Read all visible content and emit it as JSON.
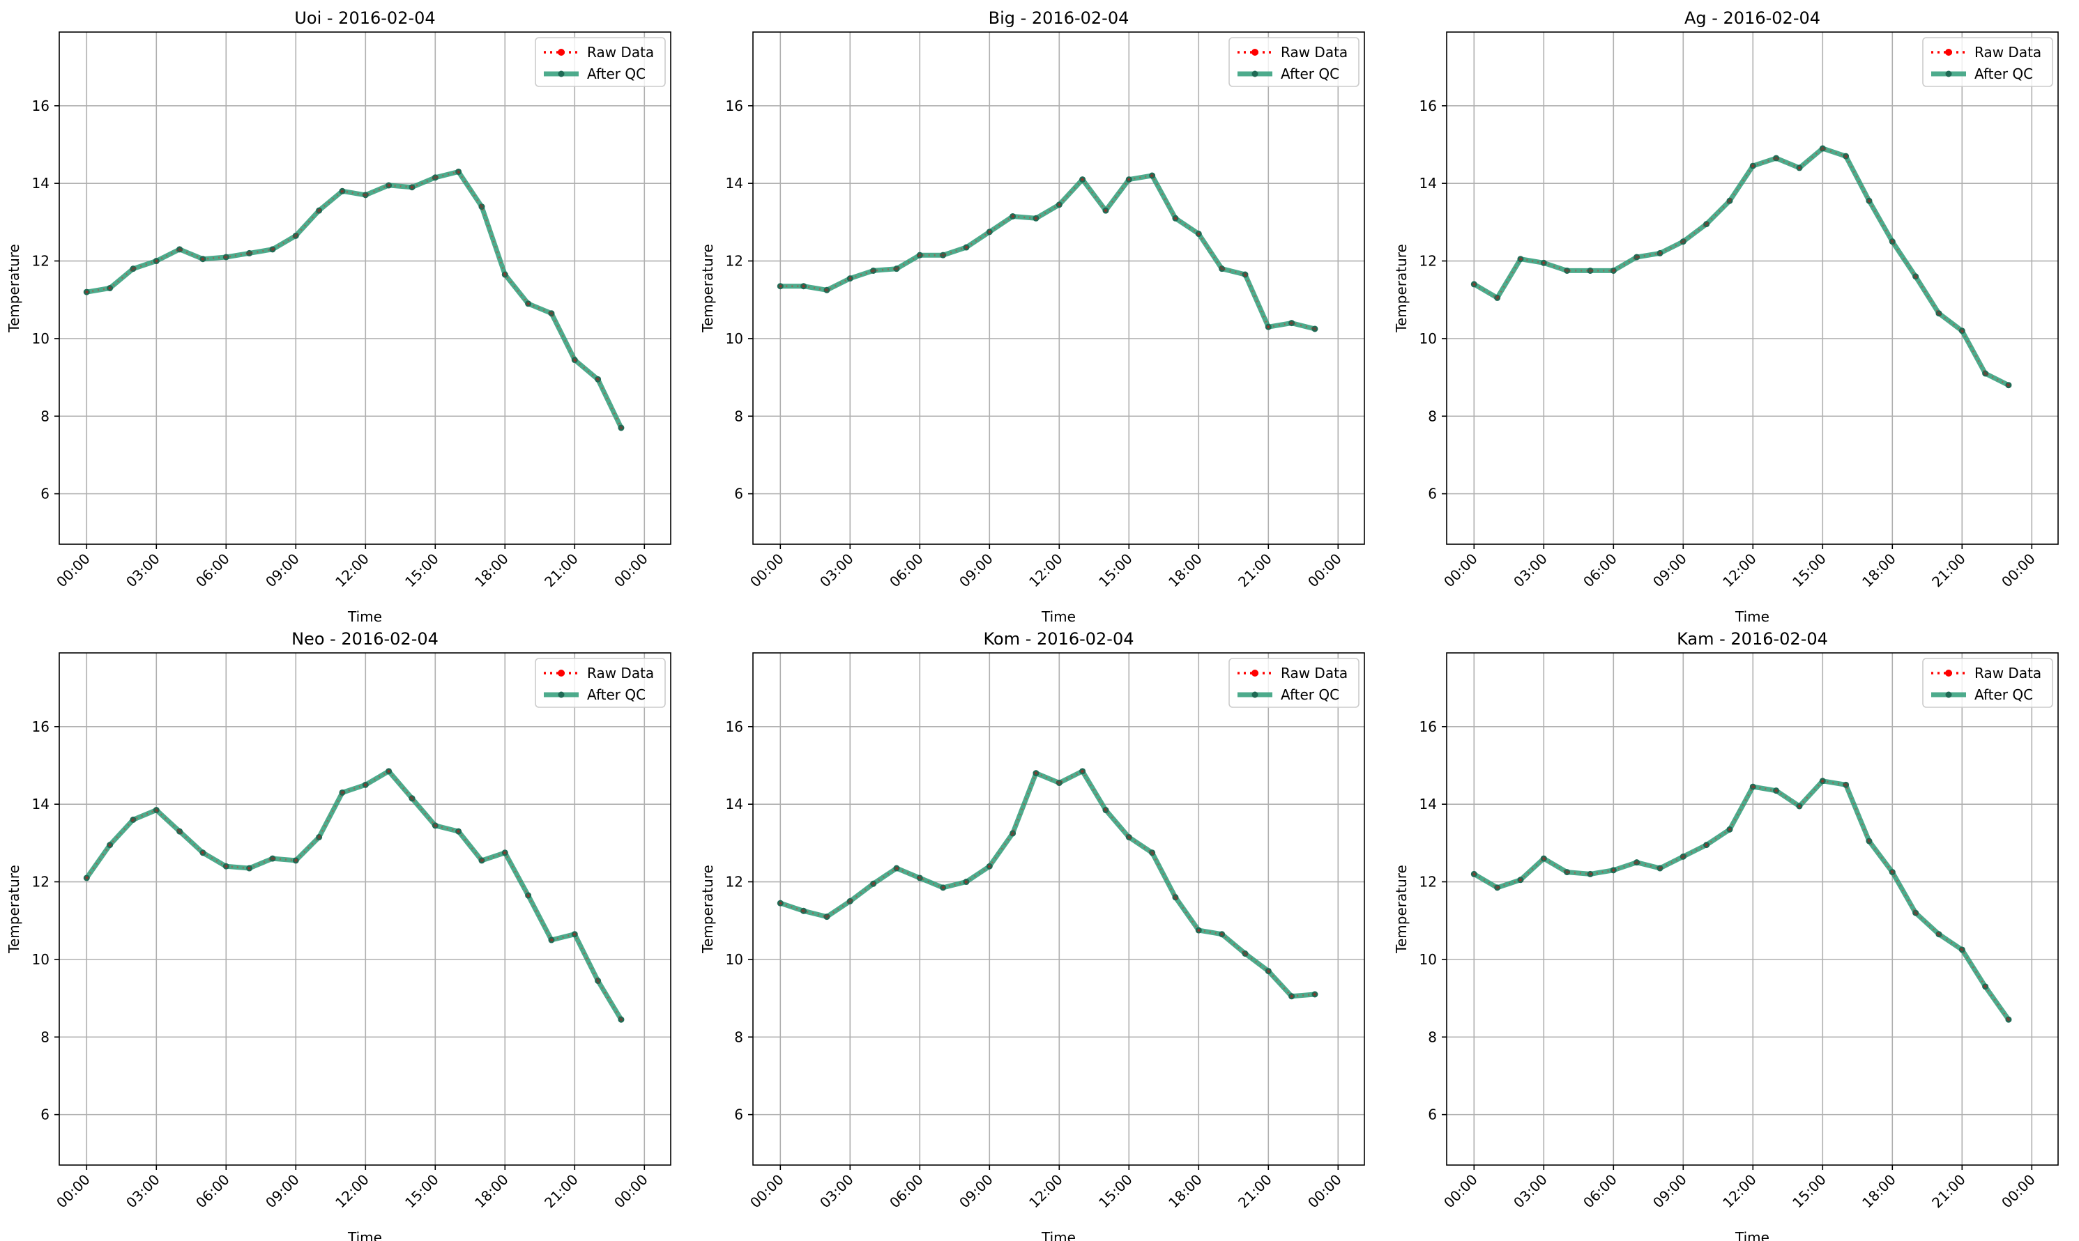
{
  "colors": {
    "raw": "#ff0000",
    "qc": "#2e9c78",
    "qc_marker": "#1f6b55",
    "grid": "#b0b0b0"
  },
  "chart_data": [
    {
      "type": "line",
      "title": "Uoi - 2016-02-04",
      "xlabel": "Time",
      "ylabel": "Temperature",
      "x": [
        "00:00",
        "01:00",
        "02:00",
        "03:00",
        "04:00",
        "05:00",
        "06:00",
        "07:00",
        "08:00",
        "09:00",
        "10:00",
        "11:00",
        "12:00",
        "13:00",
        "14:00",
        "15:00",
        "16:00",
        "17:00",
        "18:00",
        "19:00",
        "20:00",
        "21:00",
        "22:00",
        "23:00"
      ],
      "x_ticks": [
        "00:00",
        "03:00",
        "06:00",
        "09:00",
        "12:00",
        "15:00",
        "18:00",
        "21:00",
        "00:00"
      ],
      "y_ticks": [
        6,
        8,
        10,
        12,
        14,
        16
      ],
      "ylim": [
        4.7,
        17.9
      ],
      "grid": true,
      "legend_position": "top-right",
      "series": [
        {
          "name": "Raw Data",
          "style": "dotted",
          "values": [
            11.2,
            11.3,
            11.8,
            12.0,
            12.3,
            12.05,
            12.1,
            12.2,
            12.3,
            12.65,
            13.3,
            13.8,
            13.7,
            13.95,
            13.9,
            14.15,
            14.3,
            13.4,
            11.65,
            10.9,
            10.65,
            9.45,
            8.95,
            7.7
          ]
        },
        {
          "name": "After QC",
          "style": "solid",
          "values": [
            11.2,
            11.3,
            11.8,
            12.0,
            12.3,
            12.05,
            12.1,
            12.2,
            12.3,
            12.65,
            13.3,
            13.8,
            13.7,
            13.95,
            13.9,
            14.15,
            14.3,
            13.4,
            11.65,
            10.9,
            10.65,
            9.45,
            8.95,
            7.7
          ]
        }
      ]
    },
    {
      "type": "line",
      "title": "Big - 2016-02-04",
      "xlabel": "Time",
      "ylabel": "Temperature",
      "x": [
        "00:00",
        "01:00",
        "02:00",
        "03:00",
        "04:00",
        "05:00",
        "06:00",
        "07:00",
        "08:00",
        "09:00",
        "10:00",
        "11:00",
        "12:00",
        "13:00",
        "14:00",
        "15:00",
        "16:00",
        "17:00",
        "18:00",
        "19:00",
        "20:00",
        "21:00",
        "22:00",
        "23:00"
      ],
      "x_ticks": [
        "00:00",
        "03:00",
        "06:00",
        "09:00",
        "12:00",
        "15:00",
        "18:00",
        "21:00",
        "00:00"
      ],
      "y_ticks": [
        6,
        8,
        10,
        12,
        14,
        16
      ],
      "ylim": [
        4.7,
        17.9
      ],
      "grid": true,
      "legend_position": "top-right",
      "series": [
        {
          "name": "Raw Data",
          "style": "dotted",
          "values": [
            11.35,
            11.35,
            11.25,
            11.55,
            11.75,
            11.8,
            12.15,
            12.15,
            12.35,
            12.75,
            13.15,
            13.1,
            13.45,
            14.1,
            13.3,
            14.1,
            14.2,
            13.1,
            12.7,
            11.8,
            11.65,
            10.3,
            10.4,
            10.25
          ]
        },
        {
          "name": "After QC",
          "style": "solid",
          "values": [
            11.35,
            11.35,
            11.25,
            11.55,
            11.75,
            11.8,
            12.15,
            12.15,
            12.35,
            12.75,
            13.15,
            13.1,
            13.45,
            14.1,
            13.3,
            14.1,
            14.2,
            13.1,
            12.7,
            11.8,
            11.65,
            10.3,
            10.4,
            10.25
          ]
        }
      ]
    },
    {
      "type": "line",
      "title": "Ag - 2016-02-04",
      "xlabel": "Time",
      "ylabel": "Temperature",
      "x": [
        "00:00",
        "01:00",
        "02:00",
        "03:00",
        "04:00",
        "05:00",
        "06:00",
        "07:00",
        "08:00",
        "09:00",
        "10:00",
        "11:00",
        "12:00",
        "13:00",
        "14:00",
        "15:00",
        "16:00",
        "17:00",
        "18:00",
        "19:00",
        "20:00",
        "21:00",
        "22:00",
        "23:00"
      ],
      "x_ticks": [
        "00:00",
        "03:00",
        "06:00",
        "09:00",
        "12:00",
        "15:00",
        "18:00",
        "21:00",
        "00:00"
      ],
      "y_ticks": [
        6,
        8,
        10,
        12,
        14,
        16
      ],
      "ylim": [
        4.7,
        17.9
      ],
      "grid": true,
      "legend_position": "top-right",
      "series": [
        {
          "name": "Raw Data",
          "style": "dotted",
          "values": [
            11.4,
            11.05,
            12.05,
            11.95,
            11.75,
            11.75,
            11.75,
            12.1,
            12.2,
            12.5,
            12.95,
            13.55,
            14.45,
            14.65,
            14.4,
            14.9,
            14.7,
            13.55,
            12.5,
            11.6,
            10.65,
            10.2,
            9.1,
            8.8
          ]
        },
        {
          "name": "After QC",
          "style": "solid",
          "values": [
            11.4,
            11.05,
            12.05,
            11.95,
            11.75,
            11.75,
            11.75,
            12.1,
            12.2,
            12.5,
            12.95,
            13.55,
            14.45,
            14.65,
            14.4,
            14.9,
            14.7,
            13.55,
            12.5,
            11.6,
            10.65,
            10.2,
            9.1,
            8.8
          ]
        }
      ]
    },
    {
      "type": "line",
      "title": "Neo - 2016-02-04",
      "xlabel": "Time",
      "ylabel": "Temperature",
      "x": [
        "00:00",
        "01:00",
        "02:00",
        "03:00",
        "04:00",
        "05:00",
        "06:00",
        "07:00",
        "08:00",
        "09:00",
        "10:00",
        "11:00",
        "12:00",
        "13:00",
        "14:00",
        "15:00",
        "16:00",
        "17:00",
        "18:00",
        "19:00",
        "20:00",
        "21:00",
        "22:00",
        "23:00"
      ],
      "x_ticks": [
        "00:00",
        "03:00",
        "06:00",
        "09:00",
        "12:00",
        "15:00",
        "18:00",
        "21:00",
        "00:00"
      ],
      "y_ticks": [
        6,
        8,
        10,
        12,
        14,
        16
      ],
      "ylim": [
        4.7,
        17.9
      ],
      "grid": true,
      "legend_position": "top-right",
      "series": [
        {
          "name": "Raw Data",
          "style": "dotted",
          "values": [
            12.1,
            12.95,
            13.6,
            13.85,
            13.3,
            12.75,
            12.4,
            12.35,
            12.6,
            12.55,
            13.15,
            14.3,
            14.5,
            14.85,
            14.15,
            13.45,
            13.3,
            12.55,
            12.75,
            11.65,
            10.5,
            10.65,
            9.45,
            8.45
          ]
        },
        {
          "name": "After QC",
          "style": "solid",
          "values": [
            12.1,
            12.95,
            13.6,
            13.85,
            13.3,
            12.75,
            12.4,
            12.35,
            12.6,
            12.55,
            13.15,
            14.3,
            14.5,
            14.85,
            14.15,
            13.45,
            13.3,
            12.55,
            12.75,
            11.65,
            10.5,
            10.65,
            9.45,
            8.45
          ]
        }
      ]
    },
    {
      "type": "line",
      "title": "Kom - 2016-02-04",
      "xlabel": "Time",
      "ylabel": "Temperature",
      "x": [
        "00:00",
        "01:00",
        "02:00",
        "03:00",
        "04:00",
        "05:00",
        "06:00",
        "07:00",
        "08:00",
        "09:00",
        "10:00",
        "11:00",
        "12:00",
        "13:00",
        "14:00",
        "15:00",
        "16:00",
        "17:00",
        "18:00",
        "19:00",
        "20:00",
        "21:00",
        "22:00",
        "23:00"
      ],
      "x_ticks": [
        "00:00",
        "03:00",
        "06:00",
        "09:00",
        "12:00",
        "15:00",
        "18:00",
        "21:00",
        "00:00"
      ],
      "y_ticks": [
        6,
        8,
        10,
        12,
        14,
        16
      ],
      "ylim": [
        4.7,
        17.9
      ],
      "grid": true,
      "legend_position": "top-right",
      "series": [
        {
          "name": "Raw Data",
          "style": "dotted",
          "values": [
            11.45,
            11.25,
            11.1,
            11.5,
            11.95,
            12.35,
            12.1,
            11.85,
            12.0,
            12.4,
            13.25,
            14.8,
            14.55,
            14.85,
            13.85,
            13.15,
            12.75,
            11.6,
            10.75,
            10.65,
            10.15,
            9.7,
            9.05,
            9.1
          ]
        },
        {
          "name": "After QC",
          "style": "solid",
          "values": [
            11.45,
            11.25,
            11.1,
            11.5,
            11.95,
            12.35,
            12.1,
            11.85,
            12.0,
            12.4,
            13.25,
            14.8,
            14.55,
            14.85,
            13.85,
            13.15,
            12.75,
            11.6,
            10.75,
            10.65,
            10.15,
            9.7,
            9.05,
            9.1
          ]
        }
      ]
    },
    {
      "type": "line",
      "title": "Kam - 2016-02-04",
      "xlabel": "Time",
      "ylabel": "Temperature",
      "x": [
        "00:00",
        "01:00",
        "02:00",
        "03:00",
        "04:00",
        "05:00",
        "06:00",
        "07:00",
        "08:00",
        "09:00",
        "10:00",
        "11:00",
        "12:00",
        "13:00",
        "14:00",
        "15:00",
        "16:00",
        "17:00",
        "18:00",
        "19:00",
        "20:00",
        "21:00",
        "22:00",
        "23:00"
      ],
      "x_ticks": [
        "00:00",
        "03:00",
        "06:00",
        "09:00",
        "12:00",
        "15:00",
        "18:00",
        "21:00",
        "00:00"
      ],
      "y_ticks": [
        6,
        8,
        10,
        12,
        14,
        16
      ],
      "ylim": [
        4.7,
        17.9
      ],
      "grid": true,
      "legend_position": "top-right",
      "series": [
        {
          "name": "Raw Data",
          "style": "dotted",
          "values": [
            12.2,
            11.85,
            12.05,
            12.6,
            12.25,
            12.2,
            12.3,
            12.5,
            12.35,
            12.65,
            12.95,
            13.35,
            14.45,
            14.35,
            13.95,
            14.6,
            14.5,
            13.05,
            12.25,
            11.2,
            10.65,
            10.25,
            9.3,
            8.45
          ]
        },
        {
          "name": "After QC",
          "style": "solid",
          "values": [
            12.2,
            11.85,
            12.05,
            12.6,
            12.25,
            12.2,
            12.3,
            12.5,
            12.35,
            12.65,
            12.95,
            13.35,
            14.45,
            14.35,
            13.95,
            14.6,
            14.5,
            13.05,
            12.25,
            11.2,
            10.65,
            10.25,
            9.3,
            8.45
          ]
        }
      ]
    }
  ]
}
